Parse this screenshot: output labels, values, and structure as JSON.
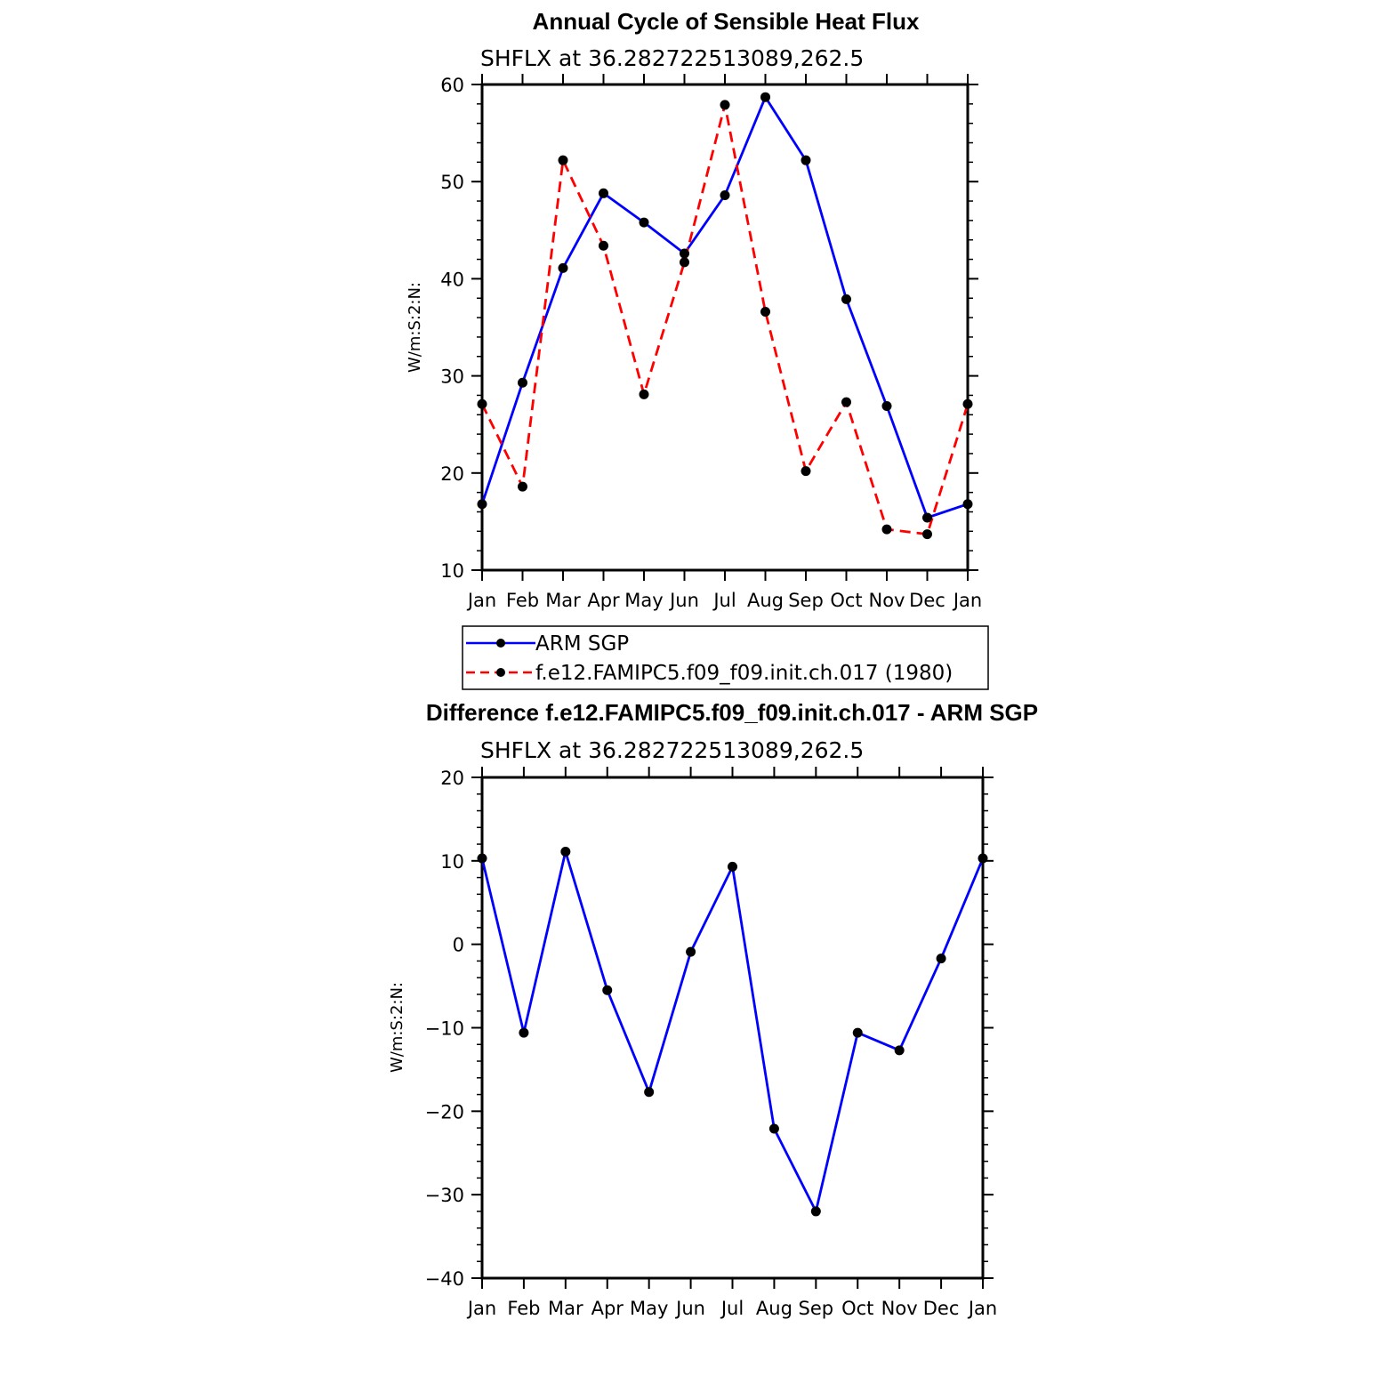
{
  "chart_data": [
    {
      "type": "line",
      "title": "Annual Cycle of Sensible Heat Flux",
      "subtitle": "SHFLX at 36.282722513089,262.5",
      "ylabel": "W/m:S:2:N:",
      "xlabel": "",
      "ylim": [
        10,
        60
      ],
      "yticks": [
        "10",
        "20",
        "30",
        "40",
        "50",
        "60"
      ],
      "categories": [
        "Jan",
        "Feb",
        "Mar",
        "Apr",
        "May",
        "Jun",
        "Jul",
        "Aug",
        "Sep",
        "Oct",
        "Nov",
        "Dec",
        "Jan"
      ],
      "grid": false,
      "legend_placement": "bottom",
      "series": [
        {
          "name": "ARM SGP",
          "color": "#0000ff",
          "dash": "solid",
          "values": [
            16.8,
            29.3,
            41.1,
            48.8,
            45.8,
            42.6,
            48.6,
            58.7,
            52.2,
            37.9,
            26.9,
            15.4,
            16.8
          ]
        },
        {
          "name": "f.e12.FAMIPC5.f09_f09.init.ch.017 (1980)",
          "color": "#ff0000",
          "dash": "dashed",
          "values": [
            27.1,
            18.6,
            52.2,
            43.4,
            28.1,
            41.7,
            57.9,
            36.6,
            20.2,
            27.3,
            14.2,
            13.7,
            27.1
          ]
        }
      ]
    },
    {
      "type": "line",
      "title": "Difference f.e12.FAMIPC5.f09_f09.init.ch.017 - ARM SGP",
      "subtitle": "SHFLX at 36.282722513089,262.5",
      "ylabel": "W/m:S:2:N:",
      "xlabel": "",
      "ylim": [
        -40,
        20
      ],
      "yticks": [
        "−40",
        "−30",
        "−20",
        "−10",
        "0",
        "10",
        "20"
      ],
      "categories": [
        "Jan",
        "Feb",
        "Mar",
        "Apr",
        "May",
        "Jun",
        "Jul",
        "Aug",
        "Sep",
        "Oct",
        "Nov",
        "Dec",
        "Jan"
      ],
      "grid": false,
      "series": [
        {
          "color": "#0000ff",
          "dash": "solid",
          "values": [
            10.3,
            -10.6,
            11.1,
            -5.5,
            -17.7,
            -0.9,
            9.3,
            -22.1,
            -32.0,
            -10.6,
            -12.7,
            -1.7,
            10.3
          ]
        }
      ]
    }
  ]
}
